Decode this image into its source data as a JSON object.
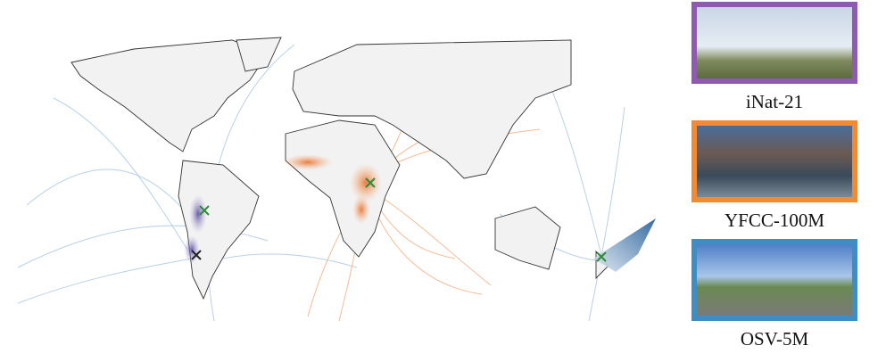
{
  "panels": [
    {
      "label": "iNat-21",
      "color": "#8e5bb1"
    },
    {
      "label": "YFCC-100M",
      "color": "#f18a30"
    },
    {
      "label": "OSV-5M",
      "color": "#3e8ec4"
    }
  ]
}
